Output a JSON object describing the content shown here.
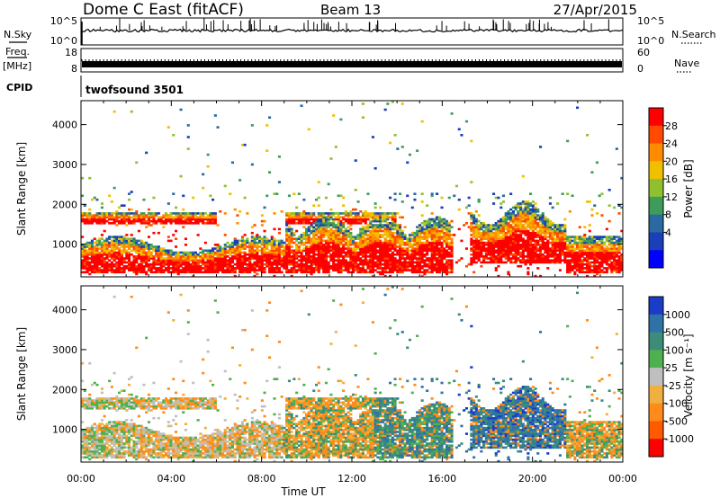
{
  "header": {
    "title": "Dome C East (fitACF)",
    "beam": "Beam 13",
    "date": "27/Apr/2015"
  },
  "top_panels": {
    "nsky_label": "N.Sky",
    "nsky_ticks": [
      "10^5",
      "10^0"
    ],
    "nsearch_label": "N.Search",
    "nsearch_ticks": [
      "10^5",
      "10^0"
    ],
    "freq_label": "Freq.",
    "freq_unit": "[MHz]",
    "freq_ticks": [
      "18",
      "8"
    ],
    "nave_label": "Nave",
    "nave_ticks": [
      "60",
      "0"
    ],
    "cpid_label": "CPID",
    "cpid_value": "twofsound 3501"
  },
  "chart_data": [
    {
      "type": "heatmap",
      "name": "power",
      "ylabel": "Slant Range [km]",
      "xlabel": "Time UT",
      "yticks": [
        "1000",
        "2000",
        "3000",
        "4000"
      ],
      "xticks": [
        "00:00",
        "04:00",
        "08:00",
        "12:00",
        "16:00",
        "20:00",
        "00:00"
      ],
      "ylim": [
        180,
        4600
      ],
      "xlim": [
        0,
        24
      ],
      "colorbar": {
        "label": "Power [dB]",
        "ticks": [
          "28",
          "24",
          "20",
          "16",
          "12",
          "8",
          "4"
        ],
        "colors": [
          "#ff0000",
          "#ff4a00",
          "#ff8c00",
          "#f0c000",
          "#90c030",
          "#3d9c5a",
          "#2a6aa0",
          "#1b3fb8",
          "#0000ff"
        ]
      }
    },
    {
      "type": "heatmap",
      "name": "velocity",
      "ylabel": "Slant Range [km]",
      "xlabel": "Time UT",
      "yticks": [
        "1000",
        "2000",
        "3000",
        "4000"
      ],
      "xticks": [
        "00:00",
        "04:00",
        "08:00",
        "12:00",
        "16:00",
        "20:00",
        "00:00"
      ],
      "ylim": [
        180,
        4600
      ],
      "xlim": [
        0,
        24
      ],
      "colorbar": {
        "label": "Velocity [m s⁻¹]",
        "ticks": [
          "1000",
          "500",
          "100",
          "25",
          "-25",
          "-100",
          "-500",
          "-1000"
        ],
        "colors": [
          "#1a3cc8",
          "#2f72a8",
          "#3d8c7a",
          "#4fb04f",
          "#bfbfbf",
          "#f0b040",
          "#ff8c1a",
          "#ff5a00",
          "#ff0000"
        ]
      }
    }
  ]
}
